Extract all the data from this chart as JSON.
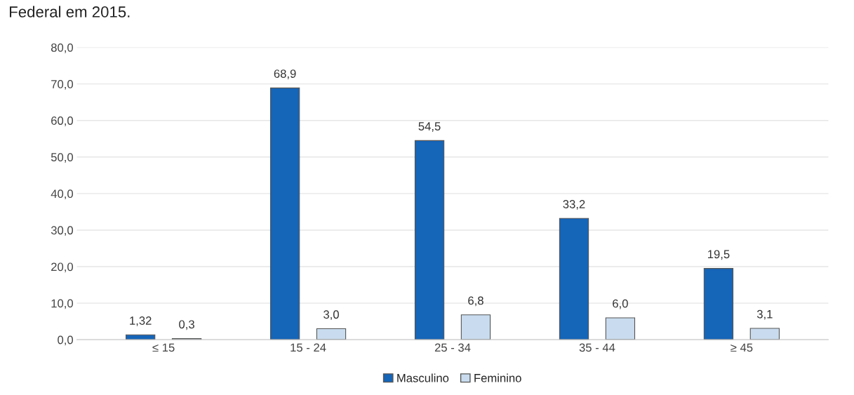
{
  "chart_data": {
    "type": "bar",
    "annotations": [
      "Federal em 2015."
    ],
    "categories": [
      "≤ 15",
      "15 - 24",
      "25 - 34",
      "35 - 44",
      "≥ 45"
    ],
    "series": [
      {
        "name": "Masculino",
        "color": "#1565b8",
        "values": [
          1.32,
          68.9,
          54.5,
          33.2,
          19.5
        ],
        "value_labels": [
          "1,32",
          "68,9",
          "54,5",
          "33,2",
          "19,5"
        ]
      },
      {
        "name": "Feminino",
        "color": "#c9dcef",
        "values": [
          0.3,
          3.0,
          6.8,
          6.0,
          3.1
        ],
        "value_labels": [
          "0,3",
          "3,0",
          "6,8",
          "6,0",
          "3,1"
        ]
      }
    ],
    "ylim": [
      0,
      80
    ],
    "yticks": [
      {
        "value": 0,
        "label": "0,0"
      },
      {
        "value": 10,
        "label": "10,0"
      },
      {
        "value": 20,
        "label": "20,0"
      },
      {
        "value": 30,
        "label": "30,0"
      },
      {
        "value": 40,
        "label": "40,0"
      },
      {
        "value": 50,
        "label": "50,0"
      },
      {
        "value": 60,
        "label": "60,0"
      },
      {
        "value": 70,
        "label": "70,0"
      },
      {
        "value": 80,
        "label": "80,0"
      }
    ],
    "grid": "y",
    "legend": "bottom"
  }
}
